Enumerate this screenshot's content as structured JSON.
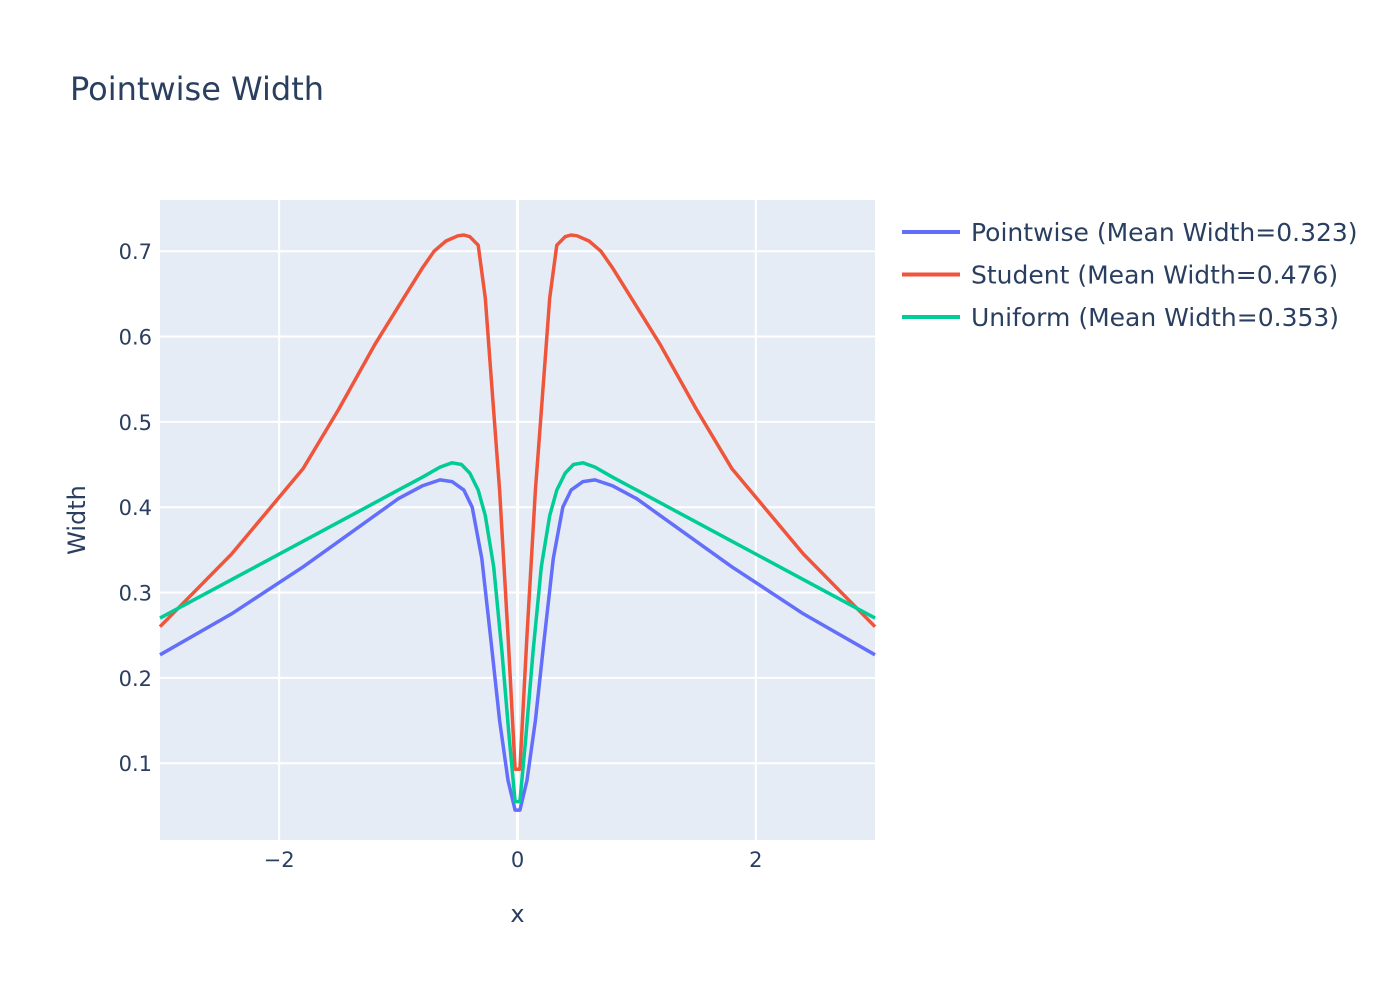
{
  "chart_data": {
    "type": "line",
    "title": "Pointwise Width",
    "xlabel": "x",
    "ylabel": "Width",
    "xlim": [
      -3,
      3
    ],
    "ylim": [
      0.01,
      0.76
    ],
    "xticks": [
      -2,
      0,
      2
    ],
    "xtick_labels": [
      "−2",
      "0",
      "2"
    ],
    "yticks": [
      0.1,
      0.2,
      0.3,
      0.4,
      0.5,
      0.6,
      0.7
    ],
    "ytick_labels": [
      "0.1",
      "0.2",
      "0.3",
      "0.4",
      "0.5",
      "0.6",
      "0.7"
    ],
    "grid": true,
    "legend_position": "right",
    "series": [
      {
        "name": "Pointwise (Mean Width=0.323)",
        "color": "#636efa",
        "x": [
          -3.0,
          -2.4,
          -1.8,
          -1.4,
          -1.0,
          -0.8,
          -0.65,
          -0.55,
          -0.45,
          -0.38,
          -0.3,
          -0.22,
          -0.15,
          -0.08,
          -0.02,
          0.02,
          0.08,
          0.15,
          0.22,
          0.3,
          0.38,
          0.45,
          0.55,
          0.65,
          0.8,
          1.0,
          1.4,
          1.8,
          2.4,
          3.0
        ],
        "y": [
          0.227,
          0.275,
          0.33,
          0.37,
          0.41,
          0.425,
          0.432,
          0.43,
          0.42,
          0.4,
          0.34,
          0.24,
          0.15,
          0.08,
          0.045,
          0.045,
          0.08,
          0.15,
          0.24,
          0.34,
          0.4,
          0.42,
          0.43,
          0.432,
          0.425,
          0.41,
          0.37,
          0.33,
          0.275,
          0.227
        ]
      },
      {
        "name": "Student (Mean Width=0.476)",
        "color": "#ef553b",
        "x": [
          -3.0,
          -2.4,
          -1.8,
          -1.5,
          -1.2,
          -1.0,
          -0.8,
          -0.7,
          -0.6,
          -0.5,
          -0.45,
          -0.4,
          -0.33,
          -0.27,
          -0.22,
          -0.15,
          -0.08,
          -0.02,
          0.02,
          0.08,
          0.15,
          0.22,
          0.27,
          0.33,
          0.4,
          0.45,
          0.5,
          0.6,
          0.7,
          0.8,
          1.0,
          1.2,
          1.5,
          1.8,
          2.4,
          3.0
        ],
        "y": [
          0.26,
          0.345,
          0.445,
          0.515,
          0.59,
          0.635,
          0.68,
          0.7,
          0.712,
          0.718,
          0.719,
          0.717,
          0.707,
          0.645,
          0.55,
          0.42,
          0.25,
          0.093,
          0.093,
          0.25,
          0.42,
          0.55,
          0.645,
          0.707,
          0.717,
          0.719,
          0.718,
          0.712,
          0.7,
          0.68,
          0.635,
          0.59,
          0.515,
          0.445,
          0.345,
          0.26
        ]
      },
      {
        "name": "Uniform (Mean Width=0.353)",
        "color": "#00cc96",
        "x": [
          -3.0,
          -2.4,
          -1.8,
          -1.4,
          -1.0,
          -0.8,
          -0.65,
          -0.55,
          -0.47,
          -0.4,
          -0.33,
          -0.27,
          -0.2,
          -0.13,
          -0.07,
          -0.02,
          0.02,
          0.07,
          0.13,
          0.2,
          0.27,
          0.33,
          0.4,
          0.47,
          0.55,
          0.65,
          0.8,
          1.0,
          1.4,
          1.8,
          2.4,
          3.0
        ],
        "y": [
          0.27,
          0.315,
          0.36,
          0.39,
          0.42,
          0.435,
          0.447,
          0.452,
          0.45,
          0.44,
          0.42,
          0.39,
          0.33,
          0.23,
          0.13,
          0.055,
          0.055,
          0.13,
          0.23,
          0.33,
          0.39,
          0.42,
          0.44,
          0.45,
          0.452,
          0.447,
          0.435,
          0.42,
          0.39,
          0.36,
          0.315,
          0.27
        ]
      }
    ]
  }
}
